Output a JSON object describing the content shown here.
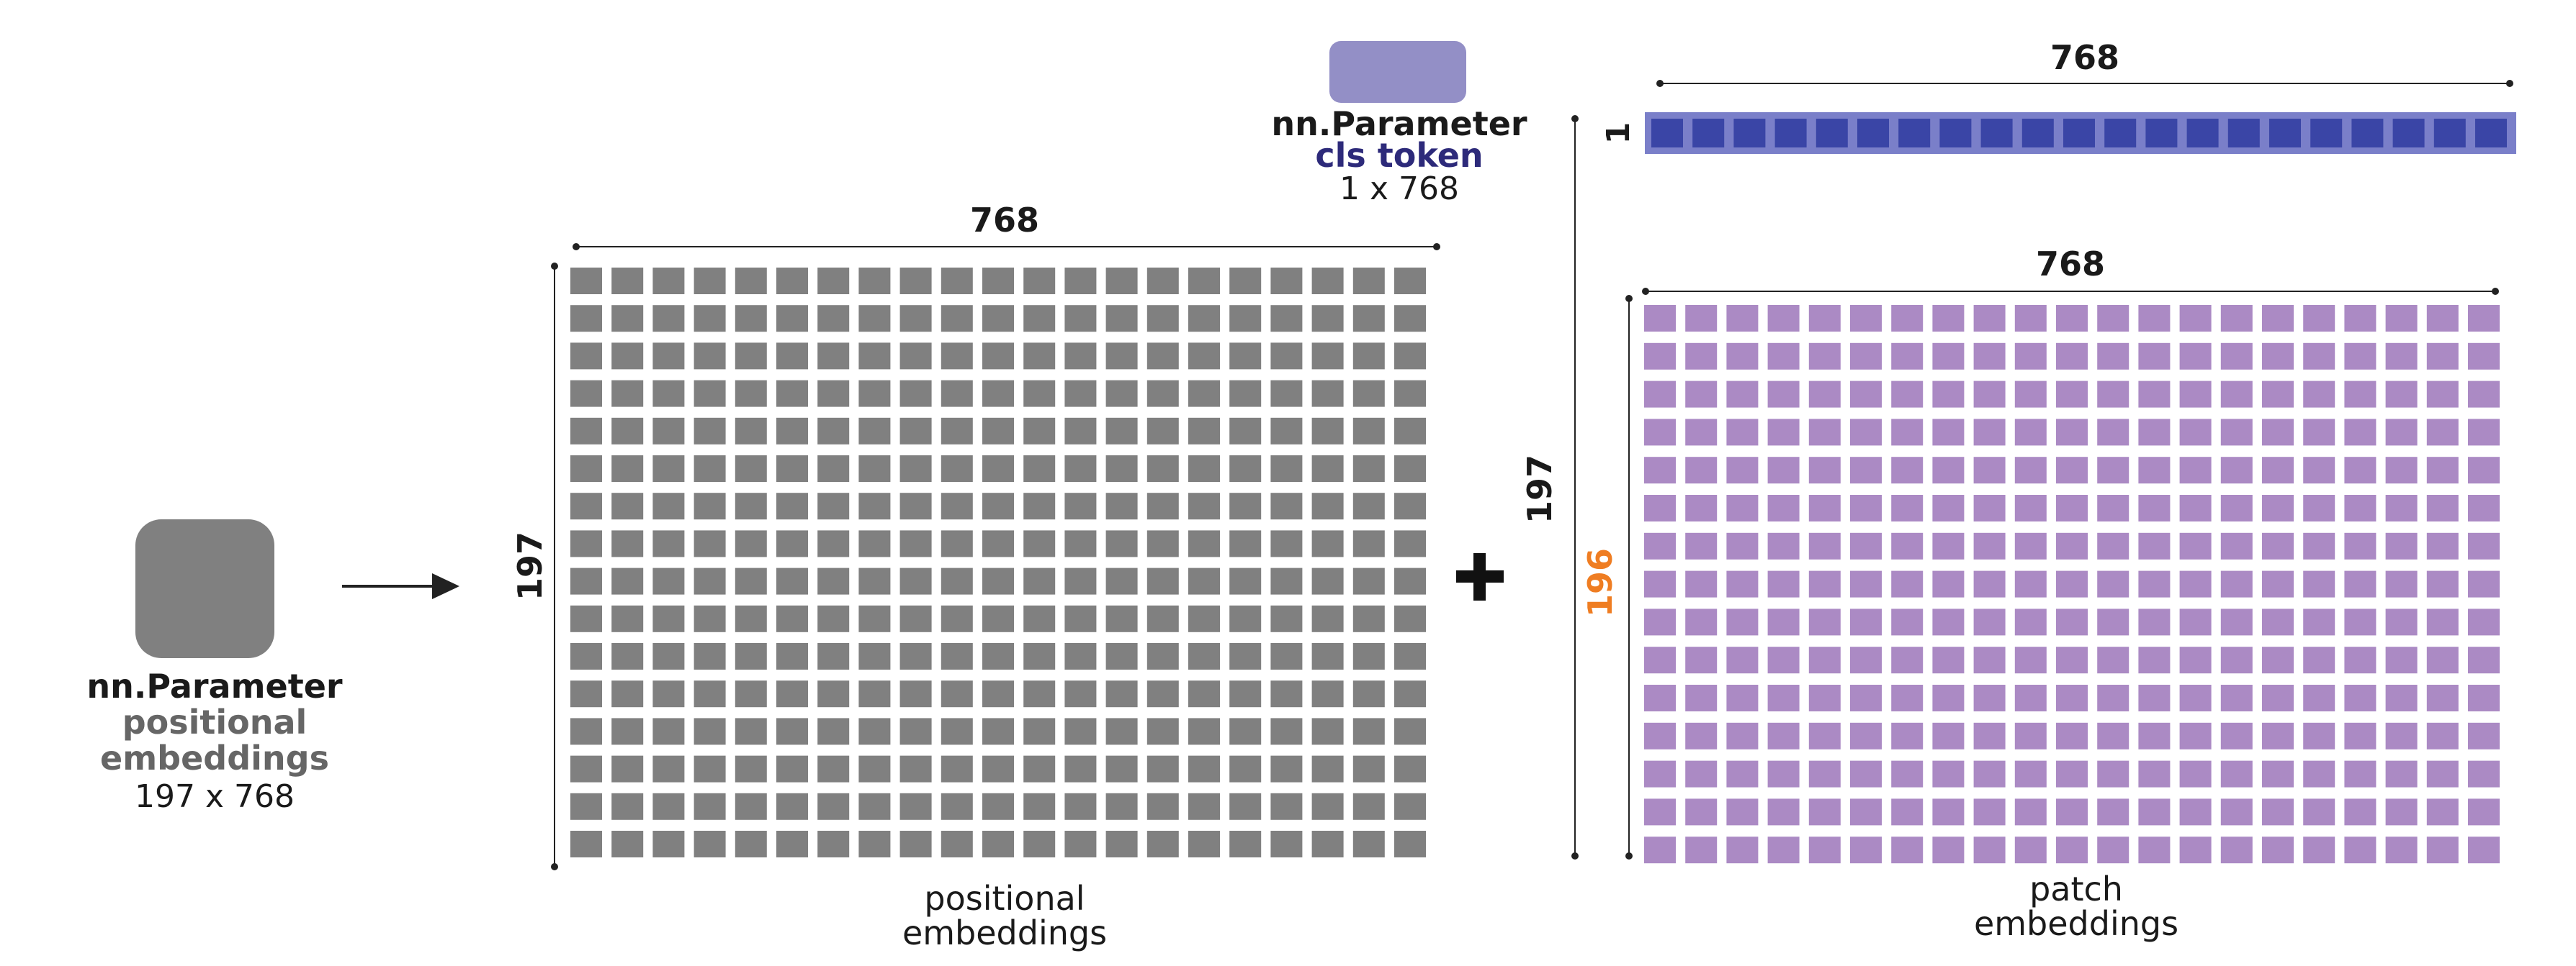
{
  "colors": {
    "positional": "#808080",
    "patch": "#ab8ac4",
    "cls_fill": "#3a45a6",
    "cls_bar": "#7a7fc9",
    "cls_param_box": "#938fc6",
    "cls_label": "#2d2a7a",
    "highlight_196": "#ef7d22",
    "text": "#1a1a1a",
    "gray_text": "#666666",
    "line": "#222222"
  },
  "icons": {
    "positional_param": "rounded-square-icon",
    "cls_param": "rounded-rect-icon",
    "arrow": "arrow-right-icon",
    "plus": "plus-icon"
  },
  "positional_param": {
    "title": "nn.Parameter",
    "name_line1": "positional",
    "name_line2": "embeddings",
    "shape": "197 x 768"
  },
  "positional_grid": {
    "width_label": "768",
    "height_label": "197",
    "caption_line1": "positional",
    "caption_line2": "embeddings",
    "rows": 16,
    "cols": 21
  },
  "cls_param": {
    "title": "nn.Parameter",
    "name": "cls token",
    "shape": "1 x 768"
  },
  "cls_bar": {
    "width_label": "768",
    "height_label": "1",
    "cells": 21
  },
  "patch_grid": {
    "width_label": "768",
    "height_label": "196",
    "total_height_label": "197",
    "caption_line1": "patch",
    "caption_line2": "embeddings",
    "rows": 15,
    "cols": 21
  }
}
